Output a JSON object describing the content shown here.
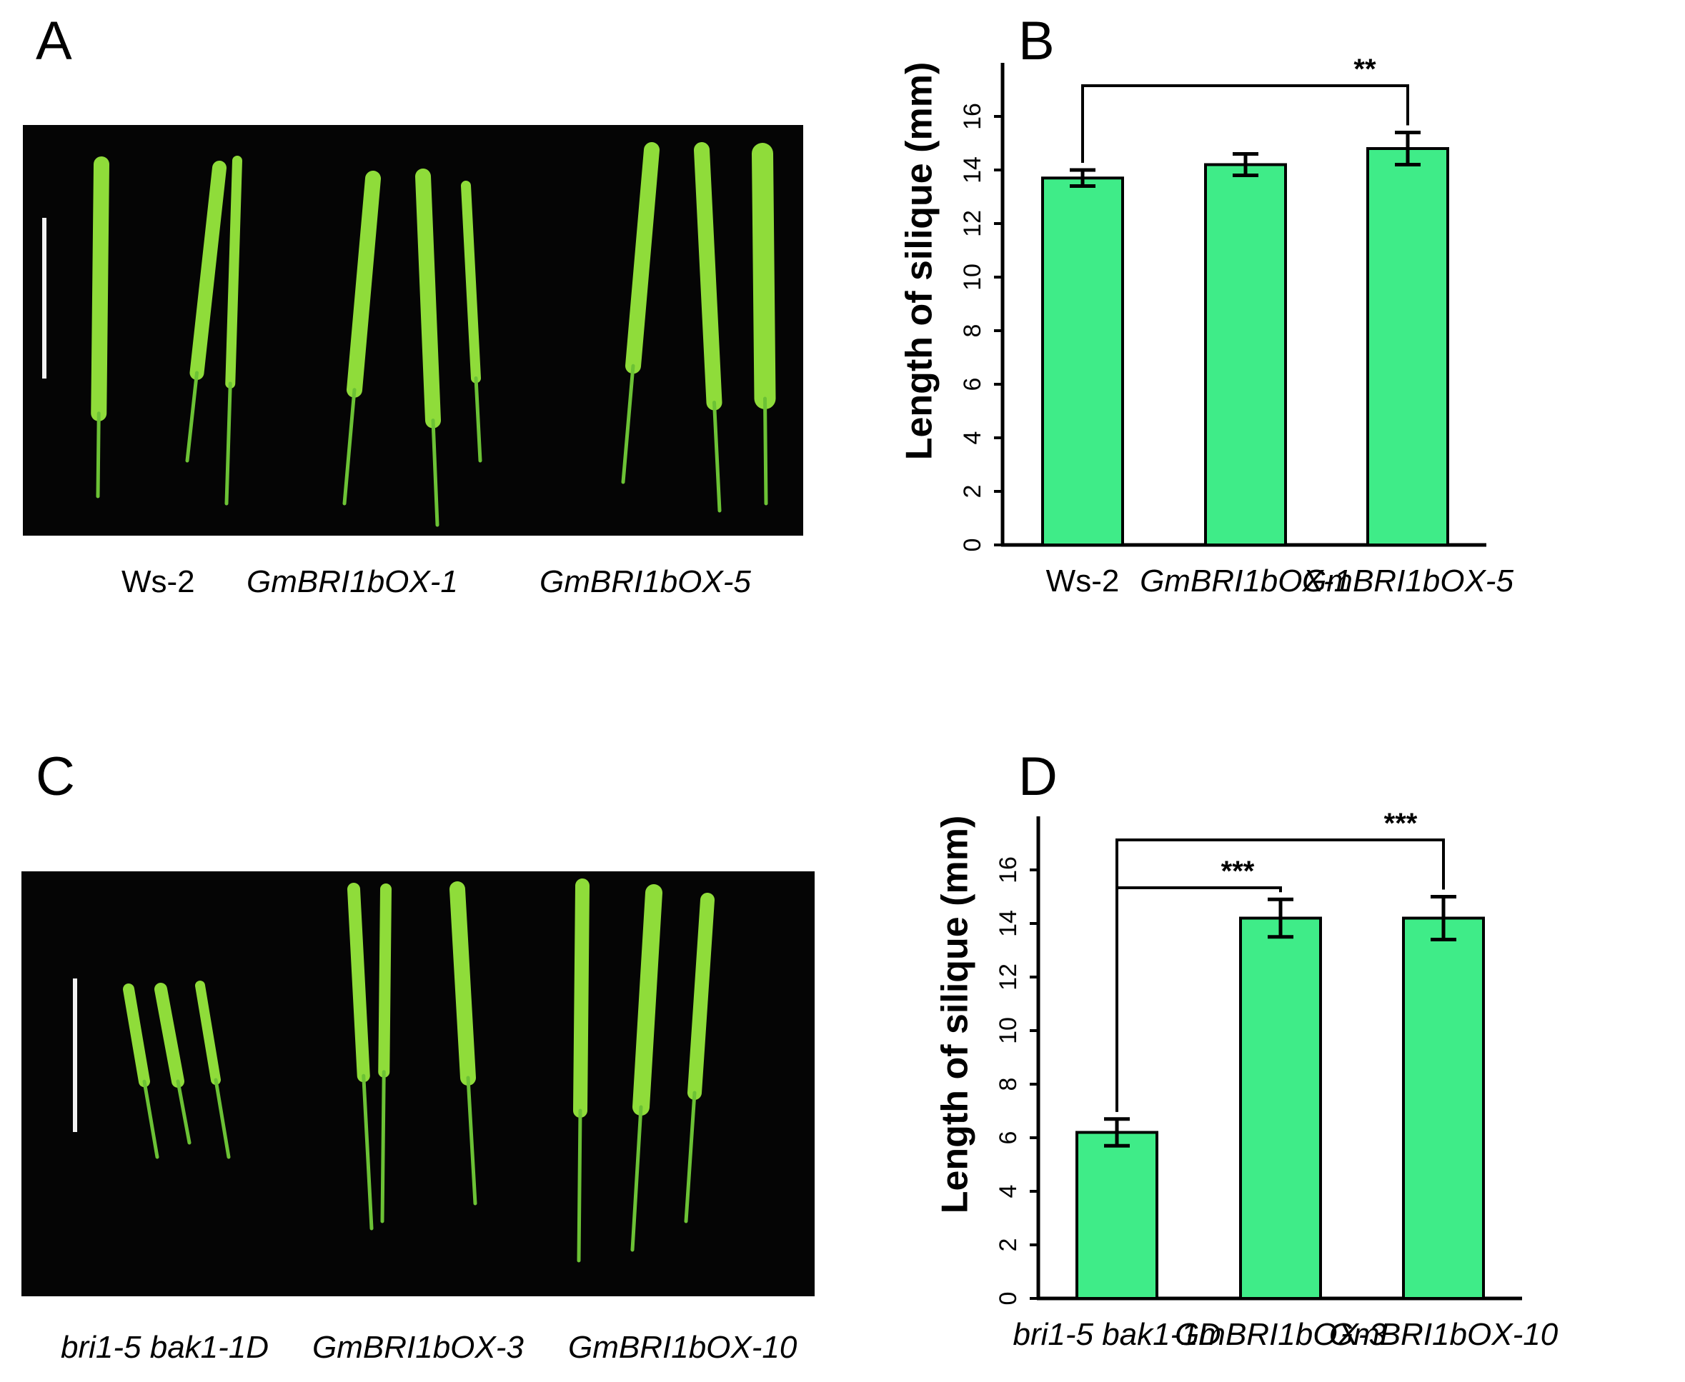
{
  "panels": {
    "A": {
      "letter": "A",
      "labels": [
        "Ws-2",
        "GmBRI1bOX-1",
        "GmBRI1bOX-5"
      ]
    },
    "B": {
      "letter": "B"
    },
    "C": {
      "letter": "C",
      "labels": [
        "bri1-5 bak1-1D",
        "GmBRI1bOX-3",
        "GmBRI1bOX-10"
      ]
    },
    "D": {
      "letter": "D"
    }
  },
  "colors": {
    "bar": "#3fec88",
    "photo_bg": "#050505",
    "silique": "#8fdc3a"
  },
  "chart_data": [
    {
      "type": "bar",
      "panel": "B",
      "categories": [
        "Ws-2",
        "GmBRI1bOX-1",
        "GmBRI1bOX-5"
      ],
      "category_italic": [
        false,
        true,
        true
      ],
      "values": [
        13.7,
        14.2,
        14.8
      ],
      "errors": [
        0.3,
        0.4,
        0.6
      ],
      "ylabel": "Length of silique (mm)",
      "yticks": [
        0,
        2,
        4,
        6,
        8,
        10,
        12,
        14,
        16
      ],
      "ylim": [
        0,
        18
      ],
      "significance": [
        {
          "from": 0,
          "to": 2,
          "label": "**"
        }
      ]
    },
    {
      "type": "bar",
      "panel": "D",
      "categories": [
        "bri1-5 bak1-1D",
        "GmBRI1bOX-3",
        "GmBRI1bOX-10"
      ],
      "category_italic": [
        true,
        true,
        true
      ],
      "values": [
        6.2,
        14.2,
        14.2
      ],
      "errors": [
        0.5,
        0.7,
        0.8
      ],
      "ylabel": "Length of silique (mm)",
      "yticks": [
        0,
        2,
        4,
        6,
        8,
        10,
        12,
        14,
        16
      ],
      "ylim": [
        0,
        18
      ],
      "significance": [
        {
          "from": 0,
          "to": 1,
          "label": "***"
        },
        {
          "from": 0,
          "to": 2,
          "label": "***"
        }
      ]
    }
  ]
}
